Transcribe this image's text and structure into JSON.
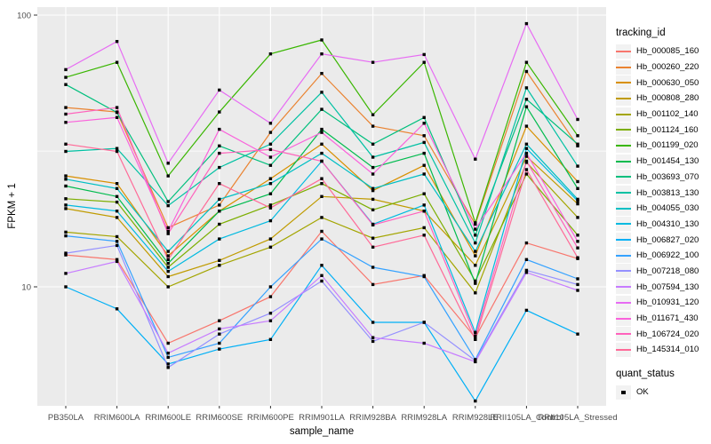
{
  "chart_data": {
    "type": "line",
    "title": "",
    "xlabel": "sample_name",
    "ylabel": "FPKM + 1",
    "y_scale": "log10",
    "ylim": [
      3.6,
      107
    ],
    "grid": true,
    "legend_position": "right",
    "y_ticks": [
      {
        "label": "100",
        "value": 100
      },
      {
        "label": "10",
        "value": 10
      }
    ],
    "y_minor_ticks": [
      31.6
    ],
    "categories": [
      "PB350LA",
      "RRIM600LA",
      "RRIM600LE",
      "RRIM600SE",
      "RRIM600PE",
      "RRIM901LA",
      "RRIM928BA",
      "RRIM928LA",
      "RRIM928LE",
      "RRII105LA_Control",
      "RRII105LA_Stressed"
    ],
    "point_marker": "square",
    "point_color": "#000000",
    "panel_color": "#EBEBEB",
    "gridline_color": "#FFFFFF",
    "series": [
      {
        "name": "Hb_000085_160",
        "color": "#F8766D",
        "values": [
          13.1,
          12.6,
          6.2,
          7.5,
          9.2,
          16.0,
          10.2,
          11.0,
          6.5,
          14.5,
          12.7
        ]
      },
      {
        "name": "Hb_000260_220",
        "color": "#EA8331",
        "values": [
          45.7,
          44.0,
          16.5,
          20.0,
          37.0,
          61.0,
          39.0,
          36.0,
          17.0,
          62.0,
          33.0
        ]
      },
      {
        "name": "Hb_000630_050",
        "color": "#D89000",
        "values": [
          25.6,
          24.0,
          13.0,
          19.0,
          25.0,
          33.5,
          22.6,
          28.0,
          13.0,
          39.0,
          24.4
        ]
      },
      {
        "name": "Hb_000808_280",
        "color": "#C09B00",
        "values": [
          19.4,
          18.0,
          10.9,
          12.5,
          15.0,
          21.5,
          21.0,
          19.0,
          12.0,
          30.2,
          20.2
        ]
      },
      {
        "name": "Hb_001102_140",
        "color": "#A3A500",
        "values": [
          15.9,
          15.3,
          10.0,
          12.0,
          14.0,
          18.0,
          15.1,
          16.5,
          9.5,
          28.7,
          18.0
        ]
      },
      {
        "name": "Hb_001124_160",
        "color": "#7CAE00",
        "values": [
          21.1,
          20.5,
          11.8,
          17.0,
          20.0,
          24.0,
          19.2,
          22.0,
          10.5,
          26.0,
          15.5
        ]
      },
      {
        "name": "Hb_001199_020",
        "color": "#39B600",
        "values": [
          59.0,
          67.0,
          25.6,
          44.0,
          72.0,
          81.0,
          43.0,
          67.0,
          17.2,
          67.0,
          36.0
        ]
      },
      {
        "name": "Hb_001454_130",
        "color": "#00BB4E",
        "values": [
          23.5,
          21.5,
          12.2,
          19.0,
          22.0,
          38.0,
          27.5,
          31.0,
          10.3,
          46.0,
          23.0
        ]
      },
      {
        "name": "Hb_003693_070",
        "color": "#00BF7D",
        "values": [
          55.5,
          43.8,
          20.6,
          33.0,
          28.0,
          45.0,
          33.5,
          42.0,
          15.5,
          49.0,
          33.5
        ]
      },
      {
        "name": "Hb_003813_130",
        "color": "#00C1A3",
        "values": [
          31.5,
          32.3,
          19.9,
          27.5,
          33.5,
          52.0,
          30.0,
          34.0,
          14.5,
          54.0,
          27.8
        ]
      },
      {
        "name": "Hb_004055_030",
        "color": "#00BFC4",
        "values": [
          24.9,
          23.0,
          13.5,
          21.0,
          24.0,
          31.0,
          23.0,
          26.0,
          13.5,
          33.5,
          21.0
        ]
      },
      {
        "name": "Hb_004310_130",
        "color": "#00BAE0",
        "values": [
          20.0,
          19.0,
          11.4,
          15.0,
          17.5,
          29.0,
          17.0,
          20.0,
          6.8,
          32.3,
          20.7
        ]
      },
      {
        "name": "Hb_006827_020",
        "color": "#00B0F6",
        "values": [
          10.0,
          8.3,
          5.2,
          5.9,
          6.4,
          12.0,
          7.4,
          7.4,
          3.8,
          8.2,
          6.7
        ]
      },
      {
        "name": "Hb_006922_100",
        "color": "#35A2FF",
        "values": [
          15.4,
          14.7,
          5.5,
          6.2,
          10.0,
          15.0,
          11.8,
          10.9,
          5.4,
          12.6,
          10.7
        ]
      },
      {
        "name": "Hb_007218_080",
        "color": "#9590FF",
        "values": [
          13.3,
          14.2,
          5.05,
          6.7,
          8.0,
          10.5,
          6.3,
          7.4,
          5.35,
          11.5,
          10.2
        ]
      },
      {
        "name": "Hb_007594_130",
        "color": "#C77CFF",
        "values": [
          11.2,
          12.4,
          5.7,
          7.0,
          7.5,
          11.0,
          6.5,
          6.2,
          5.3,
          11.3,
          9.7
        ]
      },
      {
        "name": "Hb_010931_120",
        "color": "#E76BF3",
        "values": [
          63.0,
          80.0,
          28.5,
          53.0,
          40.0,
          72.0,
          67.0,
          71.6,
          29.5,
          93.0,
          41.3
        ]
      },
      {
        "name": "Hb_011671_430",
        "color": "#FA62DB",
        "values": [
          40.3,
          42.0,
          16.0,
          38.0,
          30.0,
          37.0,
          26.0,
          40.0,
          16.3,
          31.0,
          14.7
        ]
      },
      {
        "name": "Hb_106724_020",
        "color": "#FF62BC",
        "values": [
          43.2,
          45.7,
          15.7,
          31.0,
          32.0,
          29.0,
          16.9,
          19.0,
          6.6,
          29.0,
          13.9
        ]
      },
      {
        "name": "Hb_145314_010",
        "color": "#FF6A98",
        "values": [
          33.5,
          31.5,
          12.6,
          24.0,
          19.5,
          25.0,
          14.0,
          15.5,
          6.4,
          27.0,
          12.8
        ]
      }
    ]
  },
  "legend": {
    "tracking_title": "tracking_id",
    "quant_title": "quant_status",
    "quant_label": "OK"
  }
}
